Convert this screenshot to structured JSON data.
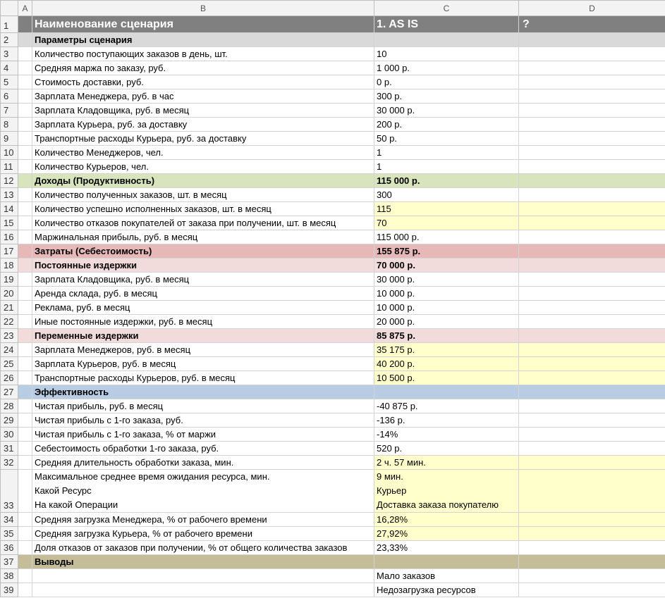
{
  "columns": [
    "A",
    "B",
    "C",
    "D"
  ],
  "rows": [
    {
      "n": 1,
      "b": "Наименование сценария",
      "c": "1. AS IS",
      "d": "?"
    },
    {
      "n": 2,
      "b": "Параметры сценария"
    },
    {
      "n": 3,
      "b": "Количество поступающих заказов в день, шт.",
      "c": "10"
    },
    {
      "n": 4,
      "b": "Средняя маржа по заказу, руб.",
      "c": "1 000 р."
    },
    {
      "n": 5,
      "b": "Стоимость доставки, руб.",
      "c": "0 р."
    },
    {
      "n": 6,
      "b": "Зарплата Менеджера, руб. в час",
      "c": "300 р."
    },
    {
      "n": 7,
      "b": "Зарплата Кладовщика, руб. в месяц",
      "c": "30 000 р."
    },
    {
      "n": 8,
      "b": "Зарплата Курьера, руб. за доставку",
      "c": "200 р."
    },
    {
      "n": 9,
      "b": "Транспортные расходы Курьера, руб. за доставку",
      "c": "50 р."
    },
    {
      "n": 10,
      "b": "Количество Менеджеров, чел.",
      "c": "1"
    },
    {
      "n": 11,
      "b": "Количество Курьеров, чел.",
      "c": "1"
    },
    {
      "n": 12,
      "b": "Доходы (Продуктивность)",
      "c": "115 000 р."
    },
    {
      "n": 13,
      "b": "Количество полученных заказов, шт. в месяц",
      "c": "300"
    },
    {
      "n": 14,
      "b": "Количество успешно исполненных заказов, шт. в месяц",
      "c": "115"
    },
    {
      "n": 15,
      "b": "Количество отказов покупателей от заказа при получении, шт. в месяц",
      "c": "70"
    },
    {
      "n": 16,
      "b": "Маржинальная прибыль, руб. в месяц",
      "c": "115 000 р."
    },
    {
      "n": 17,
      "b": "Затраты (Себестоимость)",
      "c": "155 875 р."
    },
    {
      "n": 18,
      "b": "Постоянные издержки",
      "c": "70 000 р."
    },
    {
      "n": 19,
      "b": "Зарплата Кладовщика, руб. в месяц",
      "c": "30 000 р."
    },
    {
      "n": 20,
      "b": "Аренда склада, руб. в месяц",
      "c": "10 000 р."
    },
    {
      "n": 21,
      "b": "Реклама, руб. в месяц",
      "c": "10 000 р."
    },
    {
      "n": 22,
      "b": "Иные постоянные издержки, руб. в месяц",
      "c": "20 000 р."
    },
    {
      "n": 23,
      "b": "Переменные издержки",
      "c": "85 875 р."
    },
    {
      "n": 24,
      "b": "Зарплата Менеджеров, руб. в месяц",
      "c": "35 175 р."
    },
    {
      "n": 25,
      "b": "Зарплата Курьеров, руб. в месяц",
      "c": "40 200 р."
    },
    {
      "n": 26,
      "b": "Транспортные расходы Курьеров, руб. в месяц",
      "c": "10 500 р."
    },
    {
      "n": 27,
      "b": "Эффективность"
    },
    {
      "n": 28,
      "b": "Чистая прибыль, руб. в месяц",
      "c": "-40 875 р."
    },
    {
      "n": 29,
      "b": "Чистая прибыль с 1-го заказа, руб.",
      "c": "-136 р."
    },
    {
      "n": 30,
      "b": "Чистая прибыль с 1-го заказа, % от маржи",
      "c": "-14%"
    },
    {
      "n": 31,
      "b": "Себестоимость обработки 1-го заказа, руб.",
      "c": "520 р."
    },
    {
      "n": 32,
      "b": "Средняя длительность обработки заказа, мин.",
      "c": "2 ч. 57 мин."
    },
    {
      "n": 33,
      "b_lines": [
        "Максимальное среднее время ожидания ресурса, мин.",
        "Какой Ресурс",
        "На какой Операции"
      ],
      "c_lines": [
        "9 мин.",
        "Курьер",
        "Доставка заказа покупателю"
      ]
    },
    {
      "n": 34,
      "b": "Средняя загрузка Менеджера, % от рабочего времени",
      "c": "16,28%"
    },
    {
      "n": 35,
      "b": "Средняя загрузка Курьера, % от рабочего времени",
      "c": "27,92%"
    },
    {
      "n": 36,
      "b": "Доля отказов от заказов при получении, % от общего количества заказов",
      "c": "23,33%"
    },
    {
      "n": 37,
      "b": "Выводы"
    },
    {
      "n": 38,
      "c": "Мало заказов"
    },
    {
      "n": 39,
      "c": "Недозагрузка ресурсов"
    }
  ]
}
